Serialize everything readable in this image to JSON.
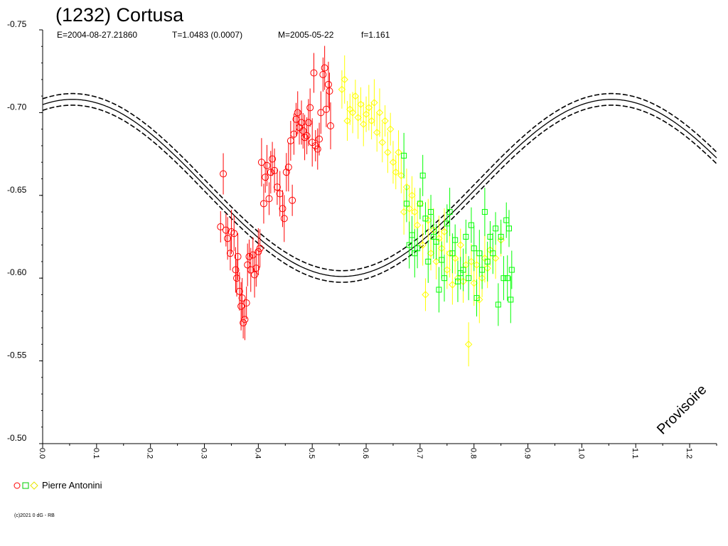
{
  "chart_data": {
    "type": "scatter",
    "title": "(1232) Cortusa",
    "subtitle": {
      "epoch": "E=2004-08-27.21860",
      "period": "T=1.0483 (0.0007)",
      "date": "M=2005-05-22",
      "order": "f=1.161"
    },
    "xlabel": "",
    "ylabel": "",
    "xlim": [
      0,
      1.25
    ],
    "ylim": [
      -0.75,
      -0.5
    ],
    "y_inverted": true,
    "grid": false,
    "x_ticks": [
      "0.0",
      "0.1",
      "0.2",
      "0.3",
      "0.4",
      "0.5",
      "0.6",
      "0.7",
      "0.8",
      "0.9",
      "1.0",
      "1.1",
      "1.2"
    ],
    "y_ticks": [
      "-0.75",
      "-0.70",
      "-0.65",
      "-0.60",
      "-0.55",
      "-0.50"
    ],
    "fit": {
      "mean": -0.6545,
      "amplitude": 0.0535,
      "peak_phase": 0.055,
      "upper_offset": 0.0035,
      "lower_offset": -0.0035
    },
    "legend": {
      "placement": "bottom-left",
      "label": "Pierre Antonini",
      "markers": [
        "circle",
        "square",
        "diamond"
      ]
    },
    "series": [
      {
        "marker": "circle",
        "color": "#ff0000",
        "points": [
          [
            0.33,
            -0.631
          ],
          [
            0.335,
            -0.663
          ],
          [
            0.34,
            -0.629
          ],
          [
            0.343,
            -0.624
          ],
          [
            0.348,
            -0.615
          ],
          [
            0.35,
            -0.628
          ],
          [
            0.355,
            -0.627
          ],
          [
            0.358,
            -0.605
          ],
          [
            0.36,
            -0.6
          ],
          [
            0.362,
            -0.613
          ],
          [
            0.365,
            -0.592
          ],
          [
            0.368,
            -0.583
          ],
          [
            0.37,
            -0.588
          ],
          [
            0.372,
            -0.573
          ],
          [
            0.375,
            -0.575
          ],
          [
            0.378,
            -0.585
          ],
          [
            0.38,
            -0.608
          ],
          [
            0.383,
            -0.613
          ],
          [
            0.386,
            -0.605
          ],
          [
            0.39,
            -0.614
          ],
          [
            0.393,
            -0.602
          ],
          [
            0.396,
            -0.606
          ],
          [
            0.4,
            -0.616
          ],
          [
            0.403,
            -0.618
          ],
          [
            0.406,
            -0.67
          ],
          [
            0.41,
            -0.645
          ],
          [
            0.413,
            -0.661
          ],
          [
            0.416,
            -0.668
          ],
          [
            0.42,
            -0.648
          ],
          [
            0.423,
            -0.664
          ],
          [
            0.426,
            -0.672
          ],
          [
            0.43,
            -0.665
          ],
          [
            0.435,
            -0.655
          ],
          [
            0.44,
            -0.651
          ],
          [
            0.445,
            -0.642
          ],
          [
            0.448,
            -0.636
          ],
          [
            0.452,
            -0.664
          ],
          [
            0.456,
            -0.667
          ],
          [
            0.46,
            -0.683
          ],
          [
            0.463,
            -0.647
          ],
          [
            0.466,
            -0.687
          ],
          [
            0.47,
            -0.696
          ],
          [
            0.473,
            -0.7
          ],
          [
            0.476,
            -0.691
          ],
          [
            0.48,
            -0.694
          ],
          [
            0.483,
            -0.689
          ],
          [
            0.486,
            -0.685
          ],
          [
            0.49,
            -0.686
          ],
          [
            0.493,
            -0.694
          ],
          [
            0.496,
            -0.703
          ],
          [
            0.5,
            -0.682
          ],
          [
            0.503,
            -0.724
          ],
          [
            0.506,
            -0.68
          ],
          [
            0.51,
            -0.678
          ],
          [
            0.513,
            -0.684
          ],
          [
            0.516,
            -0.7
          ],
          [
            0.52,
            -0.723
          ],
          [
            0.523,
            -0.727
          ],
          [
            0.526,
            -0.702
          ],
          [
            0.53,
            -0.717
          ],
          [
            0.532,
            -0.713
          ],
          [
            0.534,
            -0.692
          ]
        ]
      },
      {
        "marker": "diamond",
        "color": "#ffff00",
        "points": [
          [
            0.555,
            -0.714
          ],
          [
            0.56,
            -0.72
          ],
          [
            0.565,
            -0.695
          ],
          [
            0.57,
            -0.702
          ],
          [
            0.575,
            -0.7
          ],
          [
            0.58,
            -0.71
          ],
          [
            0.585,
            -0.697
          ],
          [
            0.59,
            -0.705
          ],
          [
            0.595,
            -0.693
          ],
          [
            0.6,
            -0.699
          ],
          [
            0.605,
            -0.703
          ],
          [
            0.61,
            -0.695
          ],
          [
            0.615,
            -0.706
          ],
          [
            0.62,
            -0.688
          ],
          [
            0.625,
            -0.7
          ],
          [
            0.63,
            -0.682
          ],
          [
            0.635,
            -0.695
          ],
          [
            0.64,
            -0.676
          ],
          [
            0.645,
            -0.69
          ],
          [
            0.65,
            -0.67
          ],
          [
            0.655,
            -0.664
          ],
          [
            0.66,
            -0.676
          ],
          [
            0.665,
            -0.662
          ],
          [
            0.67,
            -0.64
          ],
          [
            0.675,
            -0.655
          ],
          [
            0.68,
            -0.642
          ],
          [
            0.685,
            -0.65
          ],
          [
            0.69,
            -0.64
          ],
          [
            0.695,
            -0.632
          ],
          [
            0.7,
            -0.645
          ],
          [
            0.705,
            -0.62
          ],
          [
            0.71,
            -0.59
          ],
          [
            0.715,
            -0.635
          ],
          [
            0.72,
            -0.615
          ],
          [
            0.725,
            -0.629
          ],
          [
            0.73,
            -0.61
          ],
          [
            0.735,
            -0.624
          ],
          [
            0.74,
            -0.618
          ],
          [
            0.745,
            -0.628
          ],
          [
            0.75,
            -0.605
          ],
          [
            0.755,
            -0.615
          ],
          [
            0.76,
            -0.596
          ],
          [
            0.765,
            -0.612
          ],
          [
            0.77,
            -0.6
          ],
          [
            0.775,
            -0.62
          ],
          [
            0.78,
            -0.598
          ],
          [
            0.785,
            -0.608
          ],
          [
            0.79,
            -0.56
          ],
          [
            0.795,
            -0.61
          ],
          [
            0.8,
            -0.597
          ],
          [
            0.805,
            -0.608
          ],
          [
            0.81,
            -0.587
          ],
          [
            0.815,
            -0.6
          ],
          [
            0.82,
            -0.612
          ],
          [
            0.825,
            -0.606
          ],
          [
            0.83,
            -0.617
          ],
          [
            0.84,
            -0.612
          ],
          [
            0.85,
            -0.623
          ]
        ]
      },
      {
        "marker": "square",
        "color": "#00ff00",
        "points": [
          [
            0.67,
            -0.674
          ],
          [
            0.675,
            -0.645
          ],
          [
            0.68,
            -0.62
          ],
          [
            0.685,
            -0.626
          ],
          [
            0.69,
            -0.615
          ],
          [
            0.695,
            -0.618
          ],
          [
            0.7,
            -0.645
          ],
          [
            0.705,
            -0.662
          ],
          [
            0.71,
            -0.636
          ],
          [
            0.715,
            -0.61
          ],
          [
            0.72,
            -0.64
          ],
          [
            0.725,
            -0.625
          ],
          [
            0.73,
            -0.622
          ],
          [
            0.735,
            -0.593
          ],
          [
            0.74,
            -0.611
          ],
          [
            0.745,
            -0.6
          ],
          [
            0.75,
            -0.633
          ],
          [
            0.755,
            -0.64
          ],
          [
            0.76,
            -0.615
          ],
          [
            0.765,
            -0.623
          ],
          [
            0.77,
            -0.598
          ],
          [
            0.775,
            -0.603
          ],
          [
            0.78,
            -0.605
          ],
          [
            0.785,
            -0.625
          ],
          [
            0.79,
            -0.6
          ],
          [
            0.795,
            -0.632
          ],
          [
            0.8,
            -0.618
          ],
          [
            0.805,
            -0.588
          ],
          [
            0.81,
            -0.615
          ],
          [
            0.815,
            -0.605
          ],
          [
            0.82,
            -0.64
          ],
          [
            0.825,
            -0.61
          ],
          [
            0.83,
            -0.625
          ],
          [
            0.835,
            -0.615
          ],
          [
            0.84,
            -0.63
          ],
          [
            0.845,
            -0.584
          ],
          [
            0.85,
            -0.625
          ],
          [
            0.855,
            -0.6
          ],
          [
            0.86,
            -0.635
          ],
          [
            0.862,
            -0.6
          ],
          [
            0.865,
            -0.63
          ],
          [
            0.868,
            -0.587
          ],
          [
            0.87,
            -0.605
          ]
        ]
      }
    ]
  },
  "footer": {
    "copyright": "(c)2021 0 dG - RB"
  },
  "watermark": "Provisoire"
}
